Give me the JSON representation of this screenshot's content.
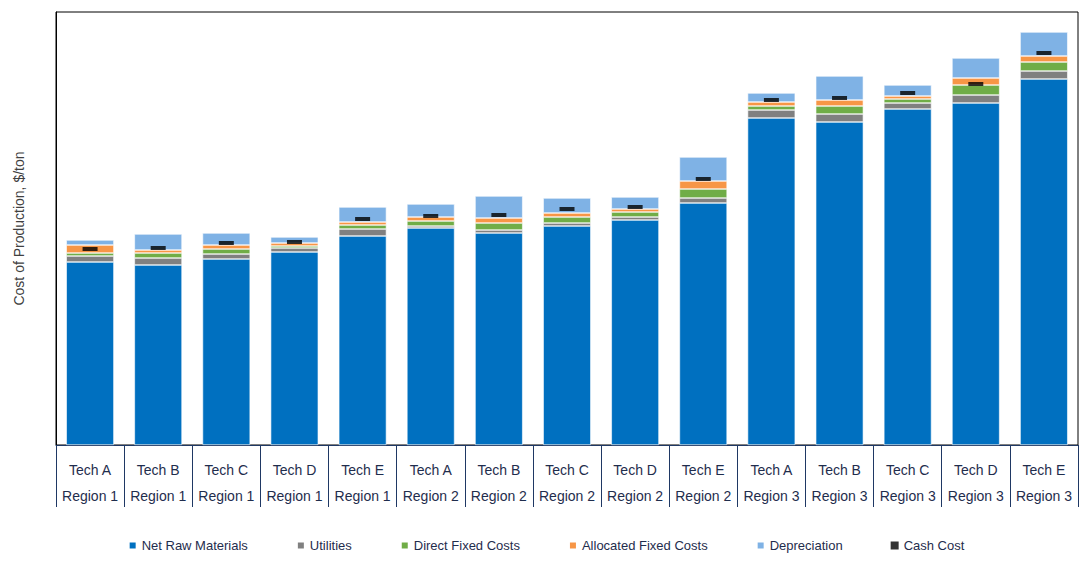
{
  "chart_data": {
    "type": "bar",
    "stacked": true,
    "y_label": "Cost of Production, $/ton",
    "categories": [
      [
        "Tech A",
        "Region 1"
      ],
      [
        "Tech B",
        "Region 1"
      ],
      [
        "Tech C",
        "Region 1"
      ],
      [
        "Tech D",
        "Region 1"
      ],
      [
        "Tech E",
        "Region 1"
      ],
      [
        "Tech A",
        "Region 2"
      ],
      [
        "Tech B",
        "Region 2"
      ],
      [
        "Tech C",
        "Region 2"
      ],
      [
        "Tech D",
        "Region 2"
      ],
      [
        "Tech E",
        "Region 2"
      ],
      [
        "Tech A",
        "Region 3"
      ],
      [
        "Tech B",
        "Region 3"
      ],
      [
        "Tech C",
        "Region 3"
      ],
      [
        "Tech D",
        "Region 3"
      ],
      [
        "Tech E",
        "Region 3"
      ]
    ],
    "series": [
      {
        "name": "Net Raw Materials",
        "color": "#0070C0",
        "values": [
          183,
          180,
          186,
          193,
          209,
          217,
          212,
          219,
          225,
          242,
          327,
          323,
          336,
          342,
          366
        ]
      },
      {
        "name": "Utilities",
        "color": "#808080",
        "values": [
          6,
          7,
          5,
          4,
          7,
          2,
          3,
          3,
          3,
          5,
          8,
          8,
          6,
          8,
          8
        ]
      },
      {
        "name": "Direct Fixed Costs",
        "color": "#70AD47",
        "values": [
          3,
          5,
          5,
          2,
          4,
          5,
          7,
          6,
          5,
          9,
          4,
          8,
          4,
          10,
          9
        ]
      },
      {
        "name": "Allocated Fixed Costs",
        "color": "#F79646",
        "values": [
          8,
          3,
          4,
          3,
          3,
          4,
          5,
          4,
          3,
          8,
          4,
          6,
          3,
          7,
          6
        ]
      },
      {
        "name": "Depreciation",
        "color": "#7FB2E5",
        "values": [
          5,
          16,
          12,
          6,
          15,
          13,
          22,
          15,
          12,
          24,
          9,
          24,
          11,
          20,
          24
        ]
      },
      {
        "name": "Cash Cost",
        "type": "scatter",
        "marker": "dash",
        "color": "#000000",
        "values": [
          196,
          197,
          202,
          203,
          226,
          229,
          230,
          236,
          238,
          266,
          345,
          347,
          352,
          361,
          392
        ]
      }
    ],
    "ylim": [
      0,
      433
    ],
    "tick_labels": "x",
    "grid": false,
    "legend": "bottom"
  }
}
